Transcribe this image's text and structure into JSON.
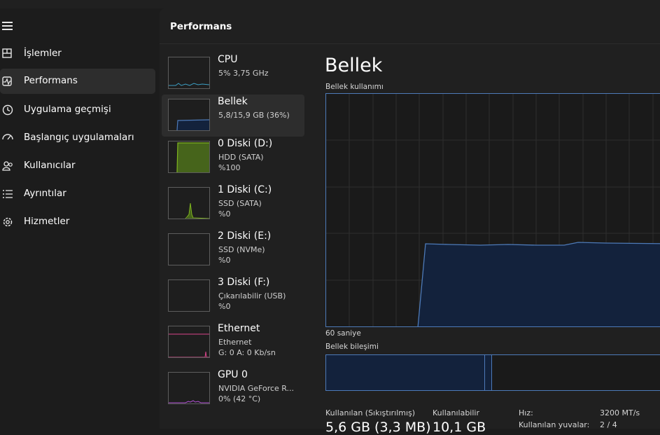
{
  "app": {
    "header_title": "Performans"
  },
  "sidebar": {
    "items": [
      {
        "label": "İşlemler",
        "icon": "processes-icon"
      },
      {
        "label": "Performans",
        "icon": "performance-icon",
        "active": true
      },
      {
        "label": "Uygulama geçmişi",
        "icon": "history-icon"
      },
      {
        "label": "Başlangıç uygulamaları",
        "icon": "startup-icon"
      },
      {
        "label": "Kullanıcılar",
        "icon": "users-icon"
      },
      {
        "label": "Ayrıntılar",
        "icon": "details-icon"
      },
      {
        "label": "Hizmetler",
        "icon": "services-icon"
      }
    ]
  },
  "resources": [
    {
      "title": "CPU",
      "line1": "5%  3,75 GHz",
      "color": "#3c9fc4"
    },
    {
      "title": "Bellek",
      "line1": "5,8/15,9 GB (36%)",
      "color": "#4d7ab8",
      "selected": true
    },
    {
      "title": "0 Diski (D:)",
      "line1": "HDD (SATA)",
      "line2": "%100",
      "color": "#7fb51f"
    },
    {
      "title": "1 Diski (C:)",
      "line1": "SSD (SATA)",
      "line2": "%0",
      "color": "#7fb51f"
    },
    {
      "title": "2 Diski (E:)",
      "line1": "SSD (NVMe)",
      "line2": "%0",
      "color": "#7fb51f"
    },
    {
      "title": "3 Diski (F:)",
      "line1": "Çıkarılabilir (USB)",
      "line2": "%0",
      "color": "#7fb51f"
    },
    {
      "title": "Ethernet",
      "line1": "Ethernet",
      "line2": "G: 0 A: 0 Kb/sn",
      "color": "#d9448a"
    },
    {
      "title": "GPU 0",
      "line1": "NVIDIA GeForce R...",
      "line2": "0%  (42 °C)",
      "color": "#b352d6"
    }
  ],
  "detail": {
    "title": "Bellek",
    "usage_label": "Bellek kullanımı",
    "time_label": "60 saniye",
    "composition_label": "Bellek bileşimi",
    "usage_fraction": 0.36,
    "stats": {
      "in_use_label": "Kullanılan (Sıkıştırılmış)",
      "in_use_value": "5,6 GB (3,3 MB)",
      "available_label": "Kullanılabilir",
      "available_value": "10,1 GB",
      "speed_label": "Hız:",
      "speed_value": "3200 MT/s",
      "slots_label": "Kullanılan yuvalar:",
      "slots_value": "2 / 4"
    }
  },
  "colors": {
    "memory_line": "#4d7ab8",
    "memory_fill": "#13223c",
    "grid": "#2e2e2e"
  }
}
